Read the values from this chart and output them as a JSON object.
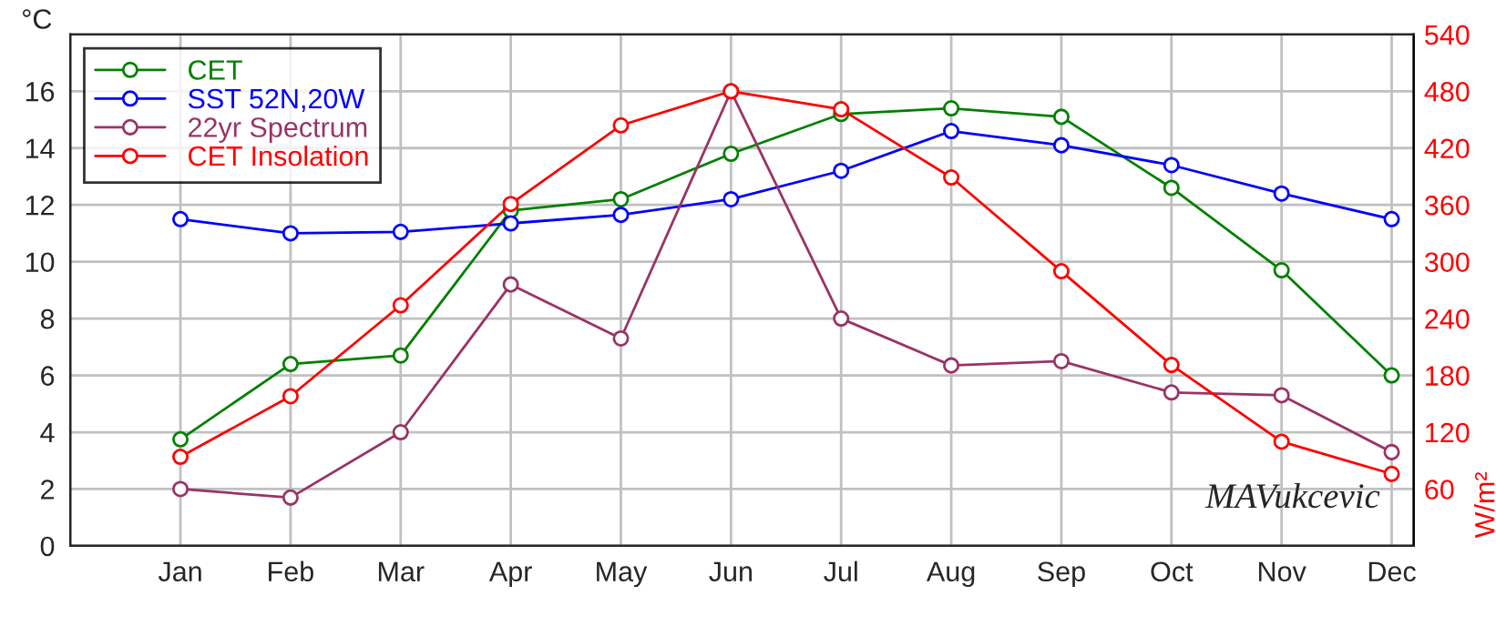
{
  "chart_data": {
    "type": "line",
    "categories": [
      "Jan",
      "Feb",
      "Mar",
      "Apr",
      "May",
      "Jun",
      "Jul",
      "Aug",
      "Sep",
      "Oct",
      "Nov",
      "Dec"
    ],
    "ylim": [
      0,
      18
    ],
    "yticks": [
      0,
      2,
      4,
      6,
      8,
      10,
      12,
      14,
      16
    ],
    "y2lim": [
      0,
      540
    ],
    "y2ticks": [
      60,
      120,
      180,
      240,
      300,
      360,
      420,
      480,
      540
    ],
    "ylabel": "°C",
    "y2label": "W/m²",
    "grid": true,
    "legend": "top left",
    "marker": "circle",
    "line_style": "solid",
    "annotations": [
      "MAVukcevic"
    ],
    "series": [
      {
        "name": "CET",
        "color": "#008000",
        "values": [
          3.75,
          6.4,
          6.7,
          11.8,
          12.2,
          13.8,
          15.2,
          15.4,
          15.1,
          12.6,
          9.7,
          6.0
        ]
      },
      {
        "name": "SST 52N,20W",
        "color": "#0000ff",
        "values": [
          11.5,
          11.0,
          11.05,
          11.35,
          11.65,
          12.2,
          13.2,
          14.6,
          14.1,
          13.4,
          12.4,
          11.5
        ]
      },
      {
        "name": "22yr Spectrum",
        "color": "#993366",
        "values": [
          2.0,
          1.7,
          4.0,
          9.2,
          7.3,
          16.0,
          8.0,
          6.35,
          6.5,
          5.4,
          5.3,
          3.3
        ]
      },
      {
        "name": "CET Insolation",
        "color": "#ff0000",
        "axis": "y2",
        "values": [
          94,
          158,
          254,
          361,
          444,
          480,
          461,
          389,
          290,
          191,
          110,
          76
        ]
      }
    ]
  }
}
